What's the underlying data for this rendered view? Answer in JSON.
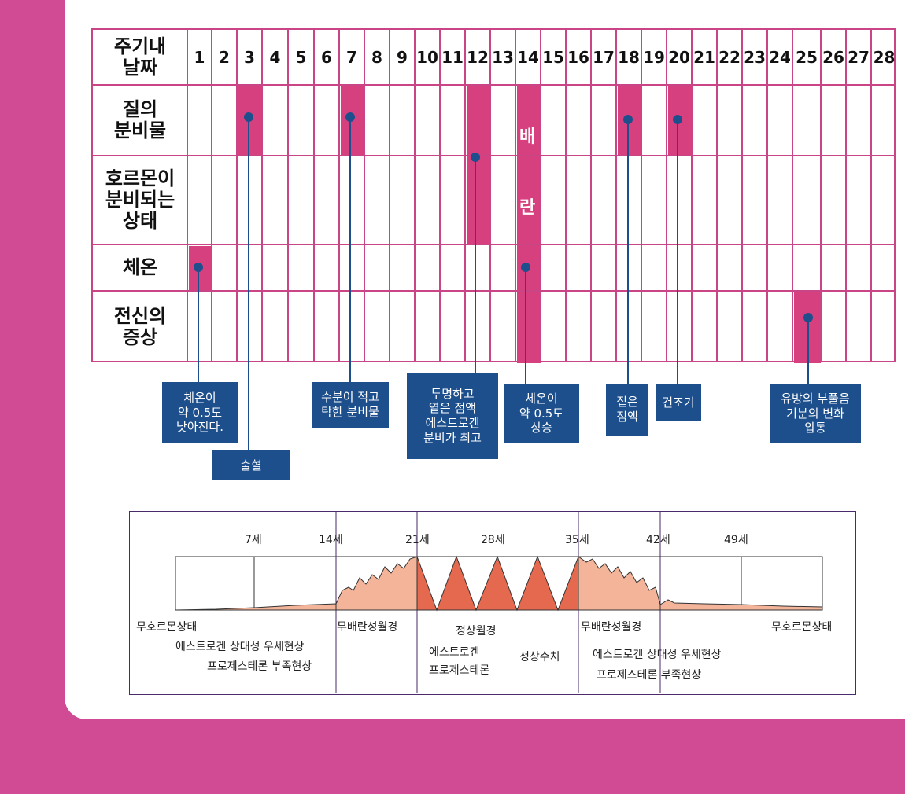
{
  "table": {
    "header_label": "주기내\n날짜",
    "days": [
      "1",
      "2",
      "3",
      "4",
      "5",
      "6",
      "7",
      "8",
      "9",
      "10",
      "11",
      "12",
      "13",
      "14",
      "15",
      "16",
      "17",
      "18",
      "19",
      "20",
      "21",
      "22",
      "23",
      "24",
      "25",
      "26",
      "27",
      "28"
    ],
    "rows": [
      {
        "key": "discharge",
        "label": "질의\n분비물"
      },
      {
        "key": "hormone",
        "label": "호르몬이\n분비되는\n상태"
      },
      {
        "key": "temperature",
        "label": "체온"
      },
      {
        "key": "symptoms",
        "label": "전신의\n증상"
      }
    ],
    "ovulation_chars": [
      "배",
      "란"
    ]
  },
  "callouts": [
    {
      "key": "temp-drop",
      "text": "체온이\n약 0.5도\n낮아진다."
    },
    {
      "key": "bleeding",
      "text": "출혈"
    },
    {
      "key": "thick-discharge",
      "text": "수분이 적고\n탁한 분비물"
    },
    {
      "key": "estrogen-peak",
      "text": "투명하고\n옅은 점액\n에스트로겐\n분비가 최고"
    },
    {
      "key": "temp-rise",
      "text": "체온이\n약 0.5도\n상승"
    },
    {
      "key": "thick-mucus",
      "text": "짙은\n점액"
    },
    {
      "key": "dry",
      "text": "건조기"
    },
    {
      "key": "breast",
      "text": "유방의 부풀음\n기분의 변화\n압통"
    }
  ],
  "life_chart": {
    "ages": [
      "7세",
      "14세",
      "21세",
      "28세",
      "35세",
      "42세",
      "49세"
    ],
    "labels": {
      "no_hormone_left": "무호르몬상태",
      "estrogen_dominance_left": "에스트로겐 상대성 우세현상",
      "progesterone_deficiency_left": "프로제스테론 부족현상",
      "anovulatory_left": "무배란성월경",
      "normal_menstruation": "정상월경",
      "estrogen": "에스트로겐",
      "progesterone": "프로제스테론",
      "normal_level": "정상수치",
      "anovulatory_right": "무배란성월경",
      "estrogen_dominance_right": "에스트로겐 상대성 우세현상",
      "progesterone_deficiency_right": "프로제스테론 부족현상",
      "no_hormone_right": "무호르몬상태"
    }
  },
  "colors": {
    "background": "#d04b93",
    "grid": "#c94585",
    "highlight": "#d7407f",
    "callout": "#1d4f8c",
    "fill_light": "#f4b49a",
    "fill_dark": "#e4694f"
  }
}
